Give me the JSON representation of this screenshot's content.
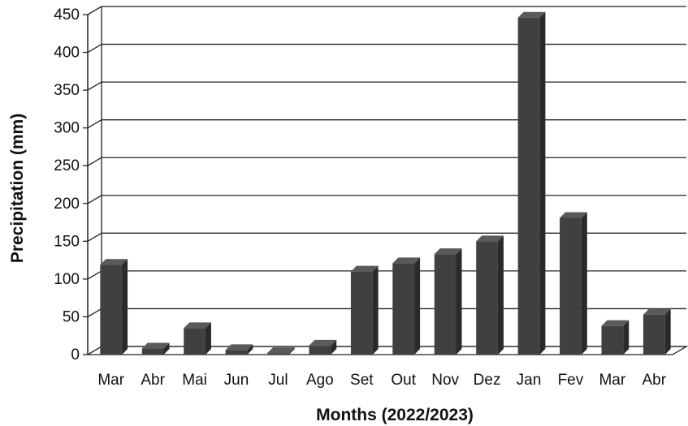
{
  "chart_data": {
    "type": "bar",
    "title": "",
    "xlabel": "Months (2022/2023)",
    "ylabel": "Precipitation (mm)",
    "ylim": [
      0,
      450
    ],
    "yticks": [
      "0",
      "50",
      "100",
      "150",
      "200",
      "250",
      "300",
      "350",
      "400",
      "450"
    ],
    "categories": [
      "Mar",
      "Abr",
      "Mai",
      "Jun",
      "Jul",
      "Ago",
      "Set",
      "Out",
      "Nov",
      "Dez",
      "Jan",
      "Fev",
      "Mar",
      "Abr"
    ],
    "values": [
      119,
      8,
      35,
      6,
      2,
      12,
      110,
      121,
      133,
      150,
      446,
      181,
      38,
      53
    ],
    "grid": true,
    "bar_color": "#404040"
  }
}
